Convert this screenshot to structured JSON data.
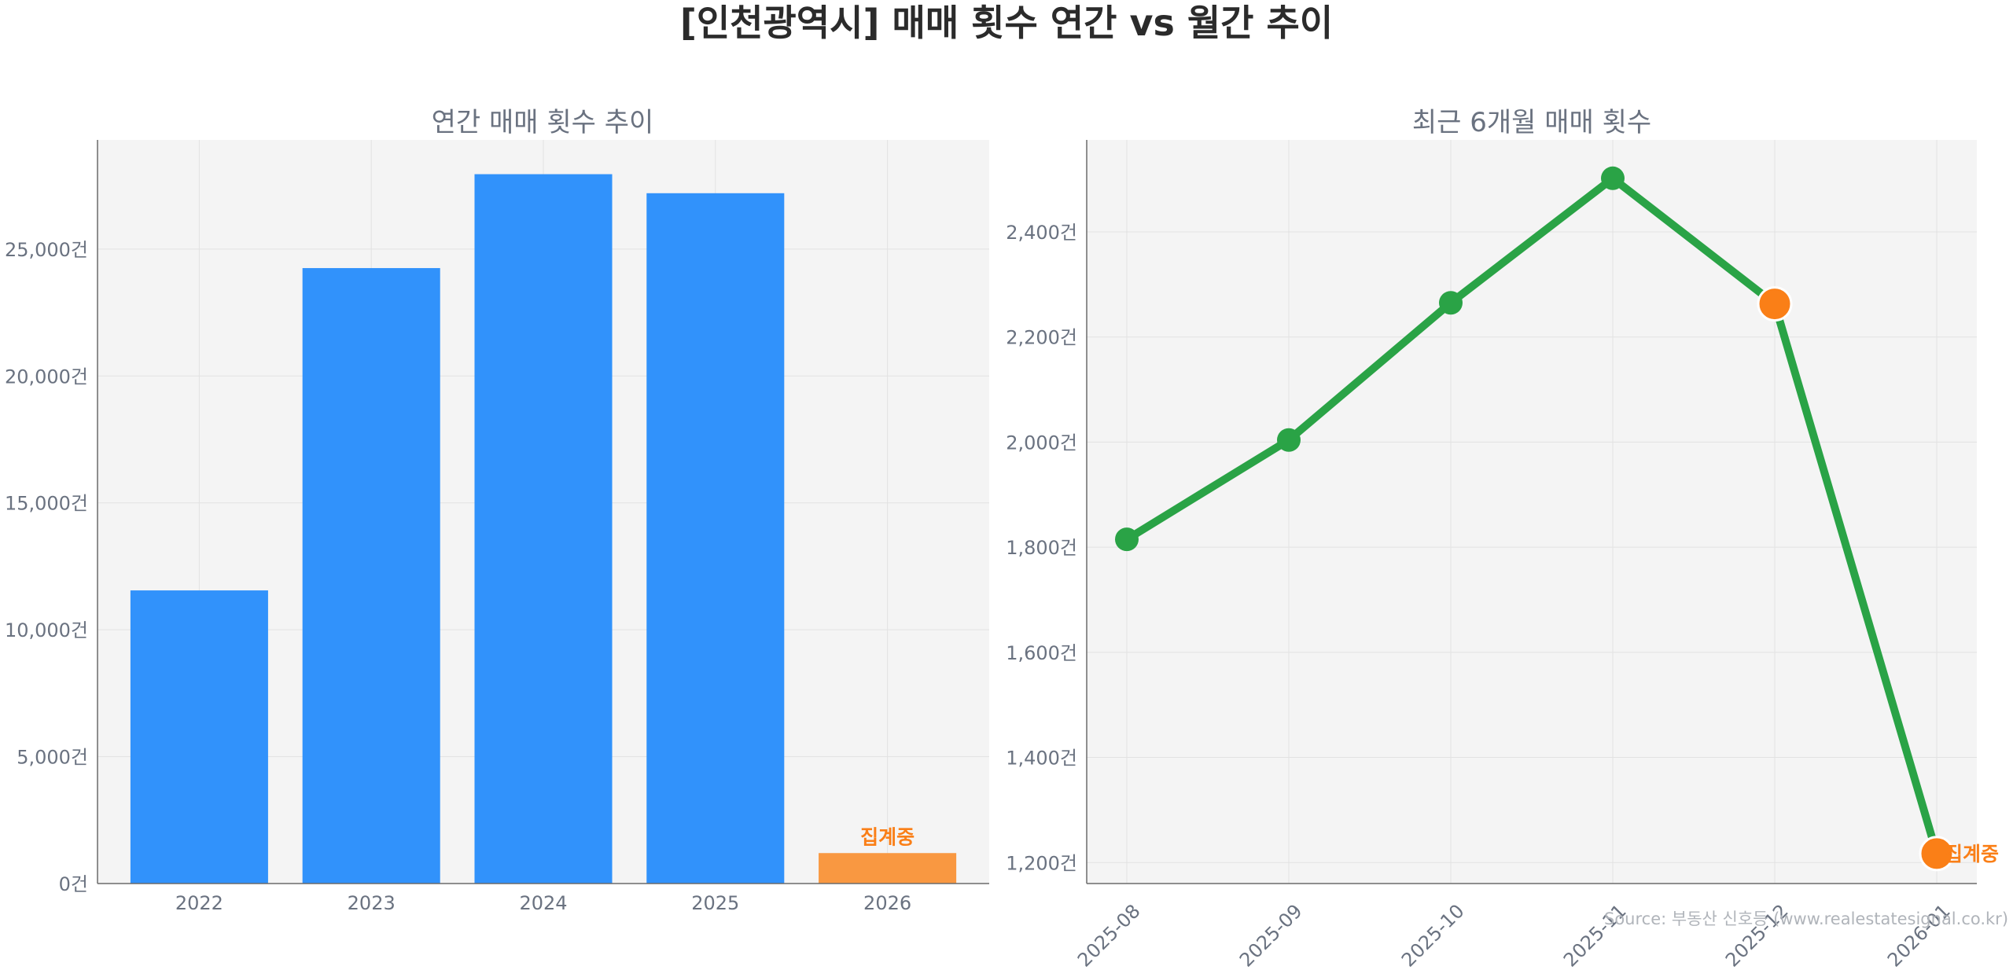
{
  "title": "[인천광역시] 매매 횟수 연간 vs 월간 추이",
  "source": "Source: 부동산 신호등 (www.realestatesignal.co.kr)",
  "colors": {
    "bar": "#3192fb",
    "bar_current": "#f99841",
    "line": "#2aa346",
    "highlight": "#fa7f17",
    "panel_bg": "#f4f4f4",
    "axis_text": "#6a7280"
  },
  "chart_data": [
    {
      "type": "bar",
      "title": "연간 매매 횟수 추이",
      "categories": [
        "2022",
        "2023",
        "2024",
        "2025",
        "2026"
      ],
      "values": [
        11550,
        24250,
        27950,
        27200,
        1200
      ],
      "highlight_index": 4,
      "annotation": "집계중",
      "ylim": [
        0,
        29300
      ],
      "yticks": [
        0,
        5000,
        10000,
        15000,
        20000,
        25000
      ],
      "ytick_labels": [
        "0건",
        "5,000건",
        "10,000건",
        "15,000건",
        "20,000건",
        "25,000건"
      ],
      "grid": true
    },
    {
      "type": "line",
      "title": "최근 6개월 매매 횟수",
      "categories": [
        "2025-08",
        "2025-09",
        "2025-10",
        "2025-11",
        "2025-12",
        "2026-01"
      ],
      "values": [
        1815,
        2004,
        2265,
        2502,
        2263,
        1217
      ],
      "highlight_indices": [
        4,
        5
      ],
      "annotation": "집계중",
      "ylim": [
        1160,
        2575
      ],
      "yticks": [
        1200,
        1400,
        1600,
        1800,
        2000,
        2200,
        2400
      ],
      "ytick_labels": [
        "1,200건",
        "1,400건",
        "1,600건",
        "1,800건",
        "2,000건",
        "2,200건",
        "2,400건"
      ],
      "grid": true
    }
  ]
}
